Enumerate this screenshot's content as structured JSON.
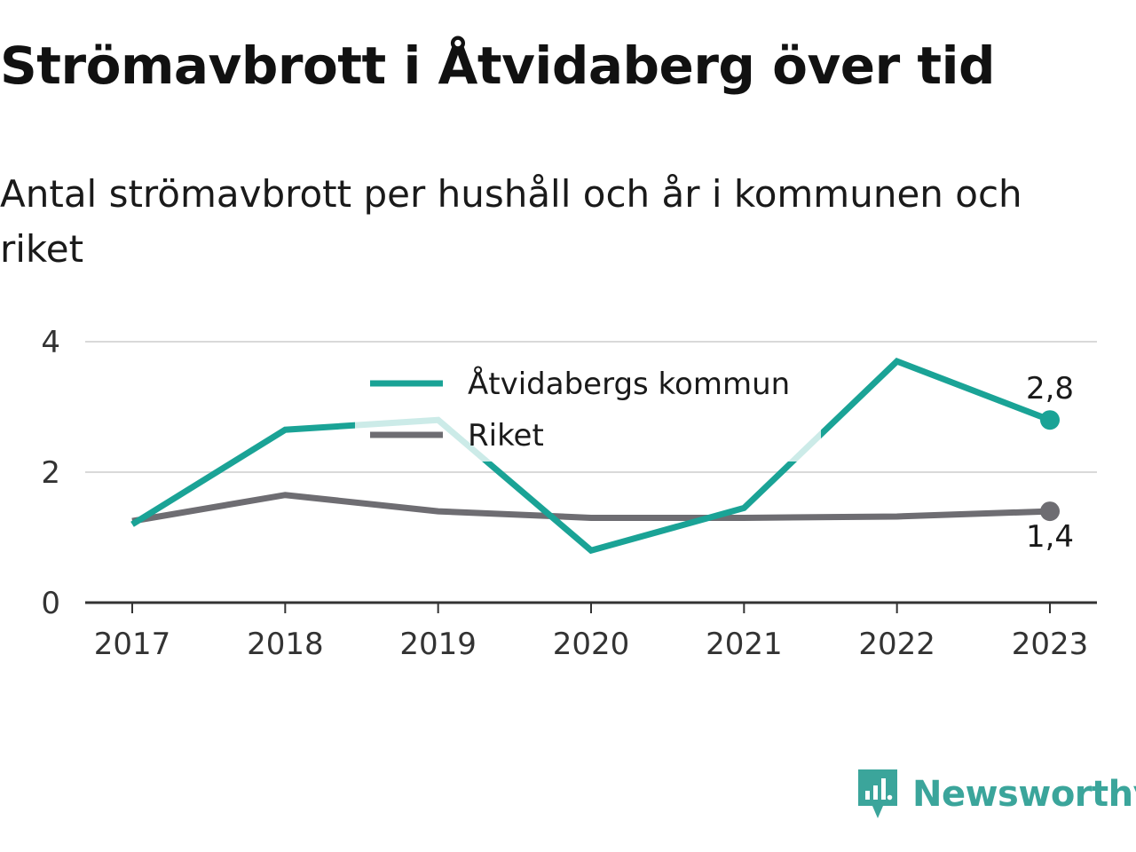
{
  "title": "Strömavbrott i Åtvidaberg över tid",
  "subtitle": "Antal strömavbrott per hushåll och år i kommunen och riket",
  "brand": {
    "name": "Newsworthy",
    "color": "#3ba59b",
    "icon": "newsworthy-chart-bubble-icon"
  },
  "chart_data": {
    "type": "line",
    "x": [
      2017,
      2018,
      2019,
      2020,
      2021,
      2022,
      2023
    ],
    "x_tick_labels": [
      "2017",
      "2018",
      "2019",
      "2020",
      "2021",
      "2022",
      "2023"
    ],
    "ylim": [
      0,
      4
    ],
    "y_ticks": [
      0,
      2,
      4
    ],
    "y_tick_labels": [
      "0",
      "2",
      "4"
    ],
    "grid": true,
    "legend_position": "top-center",
    "series": [
      {
        "name": "Åtvidabergs kommun",
        "color": "#1aa396",
        "values": [
          1.2,
          2.65,
          2.8,
          0.8,
          1.45,
          3.7,
          2.8
        ],
        "end_label": "2,8"
      },
      {
        "name": "Riket",
        "color": "#6e6d72",
        "values": [
          1.25,
          1.65,
          1.4,
          1.3,
          1.3,
          1.32,
          1.4
        ],
        "end_label": "1,4"
      }
    ]
  }
}
